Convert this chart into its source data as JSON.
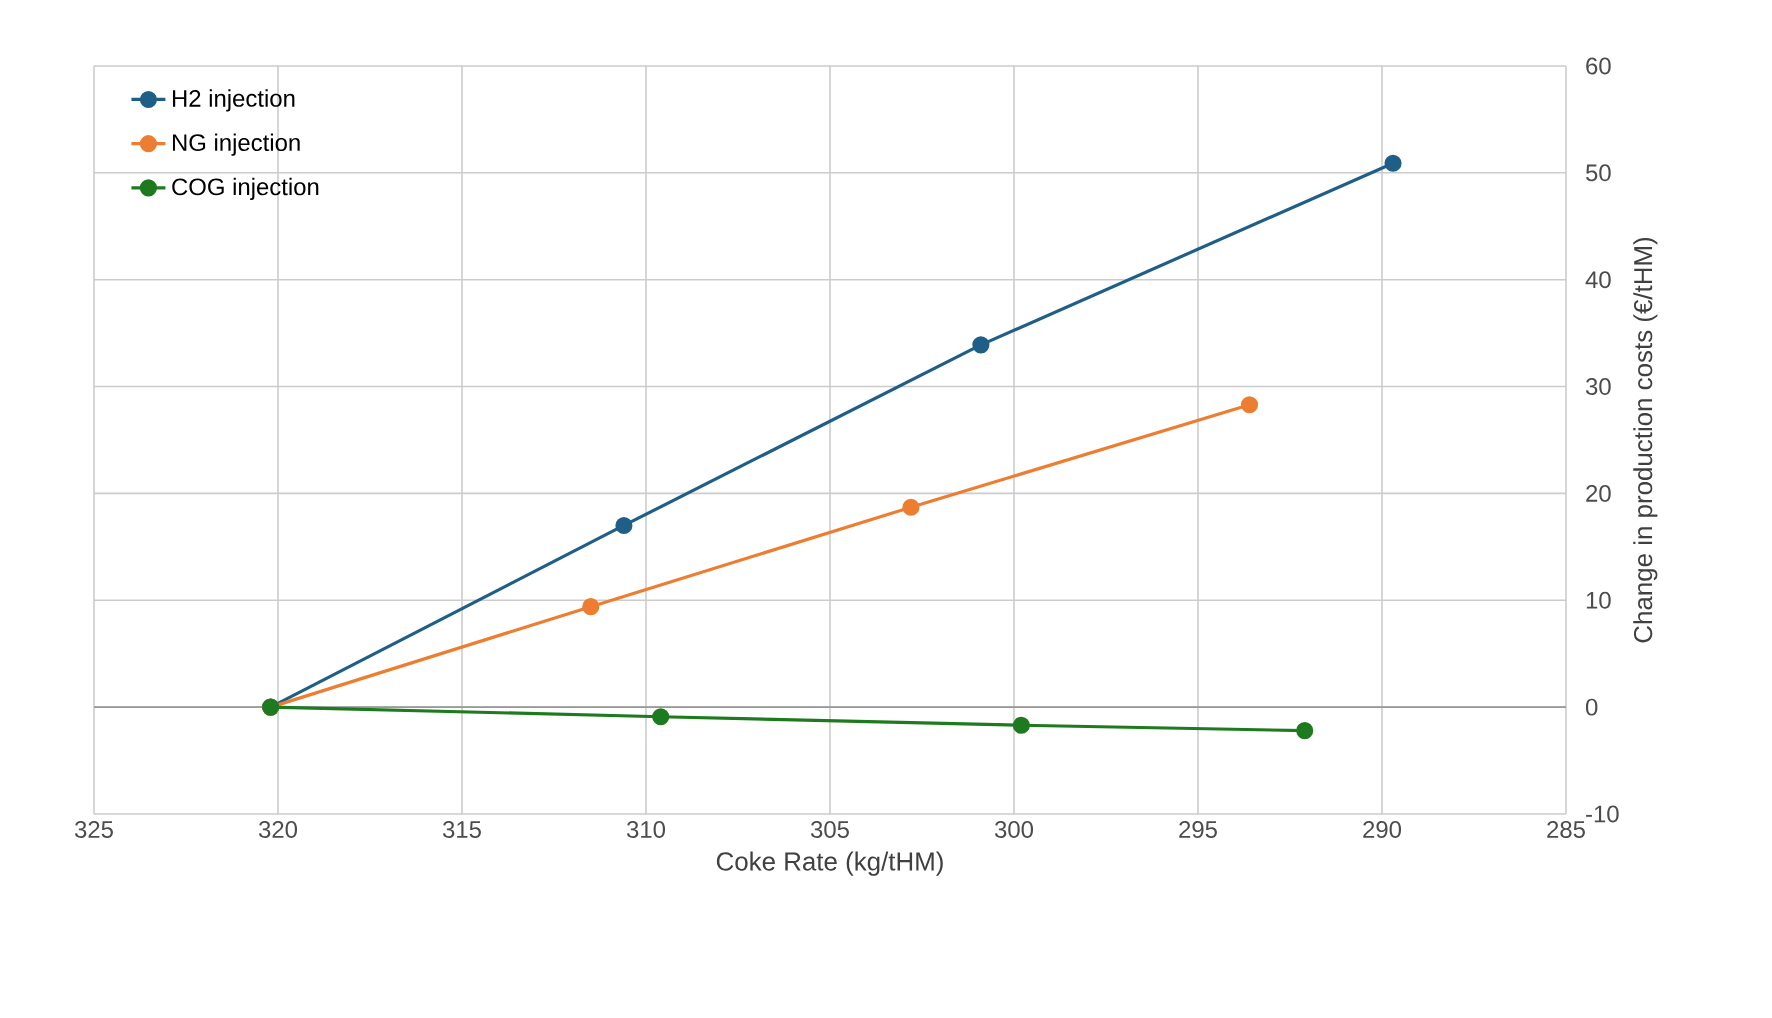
{
  "chart_data": {
    "type": "line",
    "xlabel": "Coke Rate (kg/tHM)",
    "ylabel": "Change in production costs (€/tHM)",
    "xlim": [
      325,
      285
    ],
    "xticks": [
      325,
      320,
      315,
      310,
      305,
      300,
      295,
      290,
      285
    ],
    "ylim": [
      -10,
      60
    ],
    "yticks": [
      -10,
      0,
      10,
      20,
      30,
      40,
      50,
      60
    ],
    "grid": true,
    "legend": "top left",
    "marker": "circle",
    "line_style": "solid",
    "series": [
      {
        "name": "H2 injection",
        "color": "#1f5f87",
        "x": [
          320.2,
          310.6,
          300.9,
          289.7
        ],
        "values": [
          0,
          17.0,
          33.9,
          50.9
        ]
      },
      {
        "name": "NG injection",
        "color": "#ed7d31",
        "x": [
          320.2,
          311.5,
          302.8,
          293.6
        ],
        "values": [
          0,
          9.4,
          18.7,
          28.3
        ]
      },
      {
        "name": "COG injection",
        "color": "#1e7a1e",
        "x": [
          320.2,
          309.6,
          299.8,
          292.1
        ],
        "values": [
          0,
          -0.9,
          -1.7,
          -2.2
        ]
      }
    ]
  }
}
